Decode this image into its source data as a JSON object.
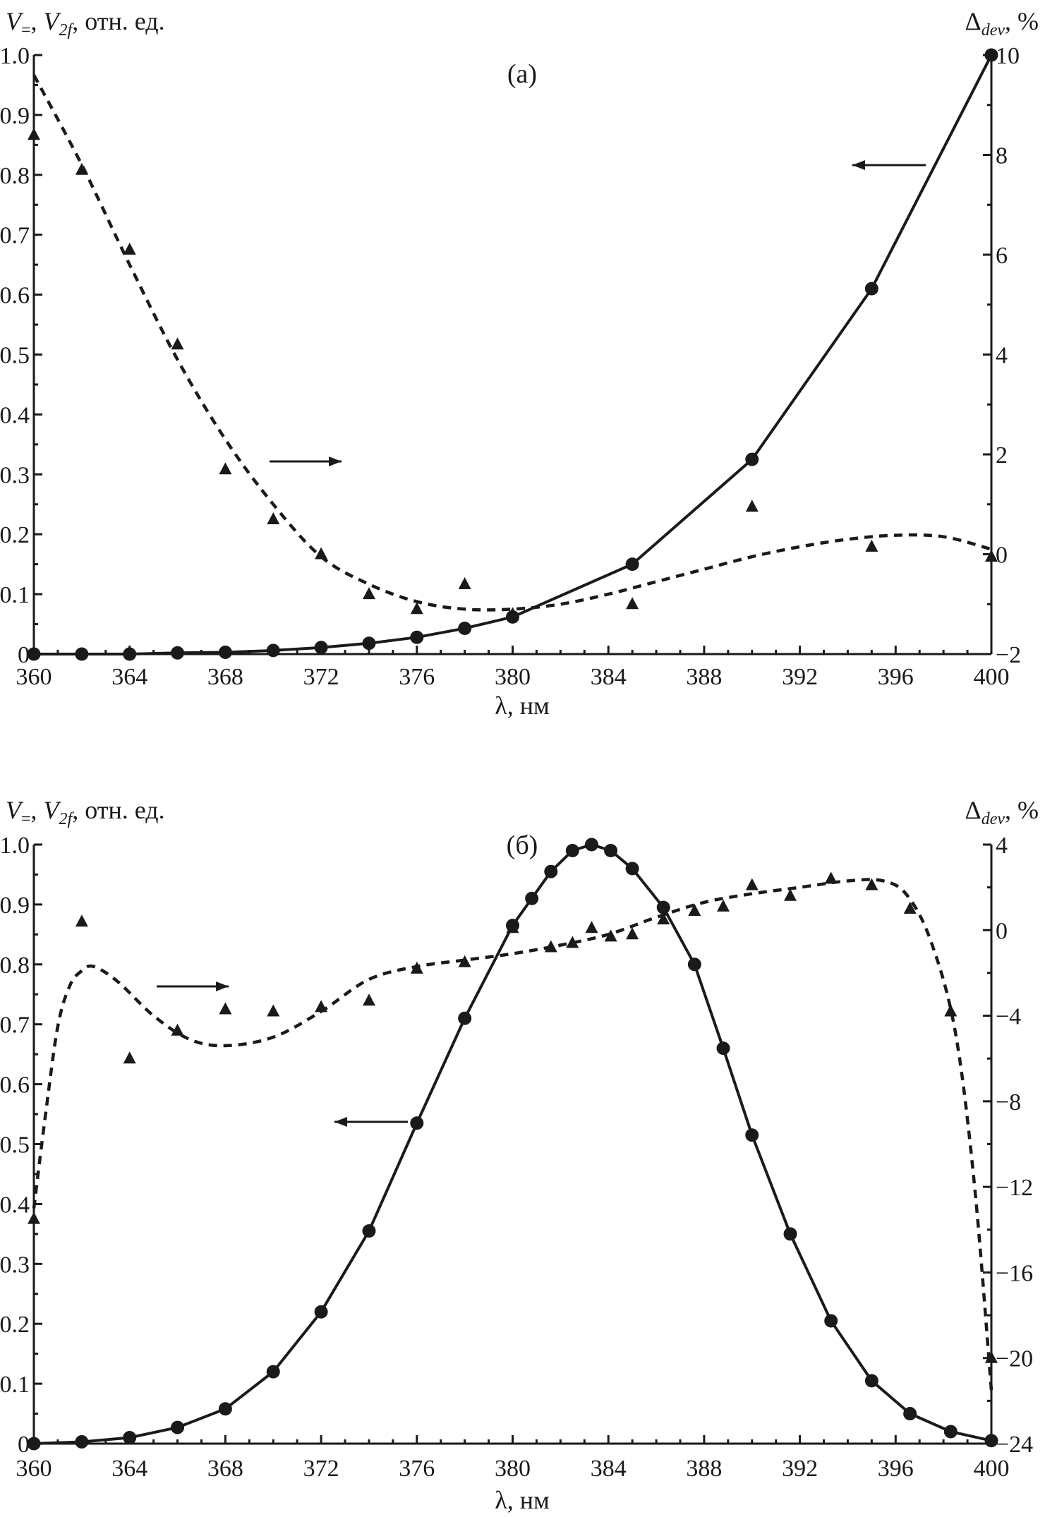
{
  "chart_data": [
    {
      "type": "line",
      "panel_label": "(а)",
      "xlabel": "λ, нм",
      "ylabel_left": [
        "V",
        "=",
        ", ",
        "V",
        "2f",
        ", отн. ед."
      ],
      "ylabel_right": [
        "Δ",
        "dev",
        ", %"
      ],
      "xlim": [
        360,
        400
      ],
      "ylim_left": [
        0,
        1.0
      ],
      "ylim_right": [
        -2,
        10
      ],
      "x_ticks": [
        360,
        364,
        368,
        372,
        376,
        380,
        384,
        388,
        392,
        396,
        400
      ],
      "y_left_ticks": [
        "0",
        "0.1",
        "0.2",
        "0.3",
        "0.4",
        "0.5",
        "0.6",
        "0.7",
        "0.8",
        "0.9",
        "1.0"
      ],
      "y_right_ticks": [
        "−2",
        "0",
        "2",
        "4",
        "6",
        "8",
        "10"
      ],
      "series": [
        {
          "name": "V (circles, solid, left axis)",
          "axis": "left",
          "marker": "circle",
          "x": [
            360,
            362,
            364,
            366,
            368,
            370,
            372,
            374,
            376,
            378,
            380,
            385,
            390,
            395,
            400
          ],
          "y": [
            0.0,
            0.0,
            0.0,
            0.002,
            0.003,
            0.006,
            0.011,
            0.018,
            0.028,
            0.043,
            0.062,
            0.15,
            0.325,
            0.61,
            1.0
          ]
        },
        {
          "name": "Δdev (triangles, right axis)",
          "axis": "right",
          "marker": "triangle",
          "x": [
            360,
            362,
            364,
            366,
            368,
            370,
            372,
            374,
            376,
            378,
            380,
            385,
            390,
            395,
            400
          ],
          "y": [
            8.4,
            7.7,
            6.1,
            4.2,
            1.7,
            0.7,
            0.0,
            -0.8,
            -1.1,
            -0.6,
            -1.2,
            -1.0,
            0.95,
            0.15,
            -0.05
          ]
        },
        {
          "name": "Δdev fit (dashed, right axis)",
          "axis": "right",
          "style": "dashed",
          "x": [
            360,
            362,
            364,
            366,
            368,
            370,
            372,
            374,
            376,
            378,
            380,
            382,
            384,
            386,
            388,
            390,
            392,
            394,
            396,
            398,
            400
          ],
          "y": [
            9.6,
            7.8,
            5.8,
            3.9,
            2.3,
            1.0,
            -0.05,
            -0.6,
            -0.95,
            -1.1,
            -1.1,
            -1.0,
            -0.8,
            -0.55,
            -0.3,
            -0.05,
            0.15,
            0.3,
            0.38,
            0.35,
            0.1
          ]
        }
      ],
      "annotations": [
        {
          "type": "arrow",
          "direction": "left",
          "meaning": "circles use left axis"
        },
        {
          "type": "arrow",
          "direction": "right",
          "meaning": "triangles use right axis"
        }
      ]
    },
    {
      "type": "line",
      "panel_label": "(б)",
      "xlabel": "λ, нм",
      "ylabel_left": [
        "V",
        "=",
        ", ",
        "V",
        "2f",
        ", отн. ед."
      ],
      "ylabel_right": [
        "Δ",
        "dev",
        ", %"
      ],
      "xlim": [
        360,
        400
      ],
      "ylim_left": [
        0,
        1.0
      ],
      "ylim_right": [
        -24,
        4
      ],
      "x_ticks": [
        360,
        364,
        368,
        372,
        376,
        380,
        384,
        388,
        392,
        396,
        400
      ],
      "y_left_ticks": [
        "0",
        "0.1",
        "0.2",
        "0.3",
        "0.4",
        "0.5",
        "0.6",
        "0.7",
        "0.8",
        "0.9",
        "1.0"
      ],
      "y_right_ticks": [
        "−24",
        "−20",
        "−16",
        "−12",
        "−8",
        "−4",
        "0",
        "4"
      ],
      "series": [
        {
          "name": "V (circles, solid, left axis)",
          "axis": "left",
          "marker": "circle",
          "x": [
            360,
            362,
            364,
            366,
            368,
            370,
            372,
            374,
            376,
            378,
            380,
            380.8,
            381.6,
            382.5,
            383.3,
            384.1,
            385,
            386.3,
            387.6,
            388.8,
            390,
            391.6,
            393.3,
            395,
            396.6,
            398.3,
            400
          ],
          "y": [
            0.0,
            0.003,
            0.01,
            0.027,
            0.058,
            0.12,
            0.22,
            0.355,
            0.535,
            0.71,
            0.865,
            0.91,
            0.955,
            0.99,
            1.0,
            0.99,
            0.96,
            0.895,
            0.8,
            0.66,
            0.515,
            0.35,
            0.205,
            0.105,
            0.05,
            0.02,
            0.005
          ]
        },
        {
          "name": "Δdev (triangles, right axis)",
          "axis": "right",
          "marker": "triangle",
          "x": [
            360,
            362,
            364,
            366,
            368,
            370,
            372,
            374,
            376,
            378,
            380,
            381.6,
            382.5,
            383.3,
            384.1,
            385,
            386.3,
            387.6,
            388.8,
            390,
            391.6,
            393.3,
            395,
            396.6,
            398.3,
            400
          ],
          "y": [
            -13.5,
            0.4,
            -6.0,
            -4.7,
            -3.7,
            -3.8,
            -3.6,
            -3.3,
            -1.8,
            -1.5,
            0.1,
            -0.8,
            -0.6,
            0.1,
            -0.3,
            -0.2,
            0.5,
            0.9,
            1.1,
            2.1,
            1.6,
            2.4,
            2.1,
            1.0,
            -3.8,
            -20.0
          ]
        },
        {
          "name": "Δdev fit (dashed, right axis)",
          "axis": "right",
          "style": "dashed",
          "x": [
            360,
            360.5,
            361,
            361.5,
            362,
            362.5,
            363.5,
            365,
            366.5,
            368,
            370,
            372,
            374,
            376,
            378,
            380,
            382,
            384,
            386,
            388,
            390,
            392,
            394,
            395.5,
            396.5,
            397.5,
            398.5,
            399.3,
            400
          ],
          "y": [
            -13.0,
            -8.5,
            -4.5,
            -2.6,
            -1.9,
            -1.7,
            -2.4,
            -4.0,
            -5.1,
            -5.4,
            -5.0,
            -3.8,
            -2.3,
            -1.7,
            -1.4,
            -1.1,
            -0.7,
            -0.2,
            0.6,
            1.3,
            1.7,
            2.0,
            2.3,
            2.3,
            1.6,
            -0.6,
            -4.8,
            -12.0,
            -21.5
          ]
        }
      ],
      "annotations": [
        {
          "type": "arrow",
          "direction": "right",
          "meaning": "triangles use right axis"
        },
        {
          "type": "arrow",
          "direction": "left",
          "meaning": "circles use left axis"
        }
      ]
    }
  ]
}
